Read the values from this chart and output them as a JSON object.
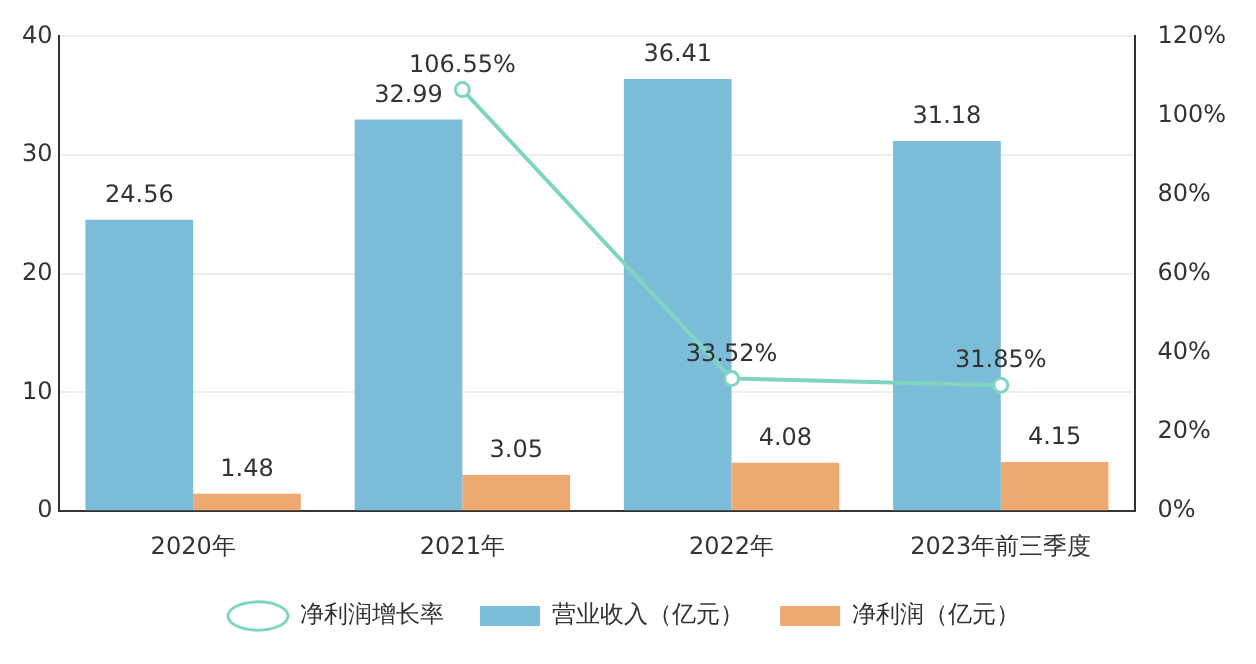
{
  "chart_data": {
    "type": "bar",
    "categories": [
      "2020年",
      "2021年",
      "2022年",
      "2023年前三季度"
    ],
    "series": [
      {
        "name": "营业收入（亿元）",
        "color": "#7bbdd9",
        "values": [
          24.56,
          32.99,
          36.41,
          31.18
        ]
      },
      {
        "name": "净利润（亿元）",
        "color": "#eda96f",
        "values": [
          1.48,
          3.05,
          4.08,
          4.15
        ]
      },
      {
        "name": "净利润增长率",
        "type": "line",
        "axis": "y2",
        "color": "#80d5c0",
        "marker": "circle",
        "values": [
          null,
          106.55,
          33.52,
          31.85
        ],
        "value_labels": [
          null,
          "106.55%",
          "33.52%",
          "31.85%"
        ]
      }
    ],
    "ylim": [
      0,
      40
    ],
    "yticks": [
      0,
      10,
      20,
      30,
      40
    ],
    "y2lim": [
      0,
      120
    ],
    "y2ticks": [
      {
        "value": 0,
        "label": "0%"
      },
      {
        "value": 20,
        "label": "20%"
      },
      {
        "value": 40,
        "label": "40%"
      },
      {
        "value": 60,
        "label": "60%"
      },
      {
        "value": 80,
        "label": "80%"
      },
      {
        "value": 100,
        "label": "100%"
      },
      {
        "value": 120,
        "label": "120%"
      }
    ],
    "grid": "y",
    "legend": "bottom",
    "data_labels": true
  }
}
